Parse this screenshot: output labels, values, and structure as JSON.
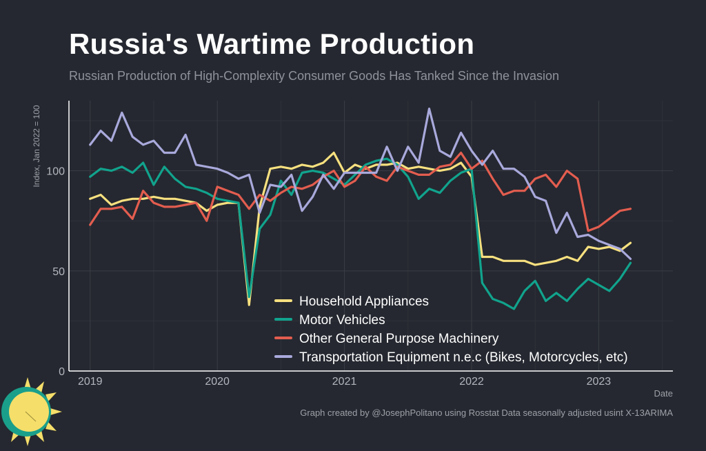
{
  "header": {
    "title": "Russia's Wartime Production",
    "subtitle": "Russian Production of High-Complexity Consumer Goods Has Tanked Since the Invasion"
  },
  "caption": "Graph created by @JosephPolitano using Rosstat Data seasonally adjusted usint X-13ARIMA",
  "colors": {
    "background": "#252830",
    "grid": "#3a3d45",
    "axis": "#ffffff",
    "tick_text": "#b3b6bd"
  },
  "logo_icon": "sun-icon",
  "chart_data": {
    "type": "line",
    "xlabel": "Date",
    "ylabel": "Index, Jan 2022 = 100",
    "x_start": "2019-01",
    "xlim": [
      "2018-11",
      "2023-08"
    ],
    "ylim": [
      0,
      135
    ],
    "yticks": [
      0,
      50,
      100
    ],
    "xticks": [
      "2019",
      "2020",
      "2021",
      "2022",
      "2023"
    ],
    "grid": true,
    "legend_position": "bottom-right",
    "series": [
      {
        "name": "Household Appliances",
        "color": "#f7e07f",
        "values": [
          86,
          88,
          83,
          85,
          86,
          86,
          87,
          86,
          86,
          85,
          84,
          80,
          83,
          84,
          84,
          33,
          82,
          101,
          102,
          101,
          103,
          102,
          104,
          109,
          99,
          103,
          101,
          103,
          103,
          104,
          101,
          102,
          101,
          100,
          101,
          104,
          97,
          57,
          57,
          55,
          55,
          55,
          53,
          54,
          55,
          57,
          55,
          62,
          61,
          62,
          60,
          64
        ]
      },
      {
        "name": "Motor Vehicles",
        "color": "#11a38d",
        "values": [
          97,
          101,
          100,
          102,
          99,
          104,
          93,
          102,
          96,
          92,
          91,
          89,
          86,
          85,
          84,
          37,
          71,
          78,
          95,
          88,
          99,
          100,
          99,
          96,
          93,
          98,
          103,
          105,
          106,
          103,
          97,
          86,
          91,
          89,
          95,
          99,
          101,
          44,
          36,
          34,
          31,
          40,
          45,
          35,
          39,
          35,
          41,
          46,
          43,
          40,
          46,
          54
        ]
      },
      {
        "name": "Other General Purpose Machinery",
        "color": "#e35d4f",
        "values": [
          73,
          81,
          81,
          82,
          76,
          90,
          84,
          82,
          82,
          83,
          84,
          75,
          92,
          90,
          88,
          81,
          88,
          85,
          89,
          92,
          91,
          93,
          97,
          100,
          92,
          95,
          102,
          97,
          95,
          102,
          100,
          98,
          98,
          102,
          103,
          109,
          101,
          105,
          96,
          88,
          90,
          90,
          96,
          98,
          92,
          100,
          96,
          70,
          72,
          76,
          80,
          81
        ]
      },
      {
        "name": "Transportation Equipment n.e.c (Bikes, Motorcycles, etc)",
        "color": "#a9a9dc",
        "values": [
          113,
          120,
          115,
          129,
          117,
          113,
          115,
          109,
          109,
          118,
          103,
          102,
          101,
          99,
          96,
          98,
          79,
          93,
          92,
          98,
          80,
          87,
          98,
          91,
          99,
          99,
          99,
          99,
          112,
          100,
          112,
          104,
          131,
          110,
          107,
          119,
          110,
          103,
          110,
          101,
          101,
          97,
          87,
          85,
          69,
          79,
          67,
          68,
          65,
          63,
          61,
          56
        ]
      }
    ]
  }
}
